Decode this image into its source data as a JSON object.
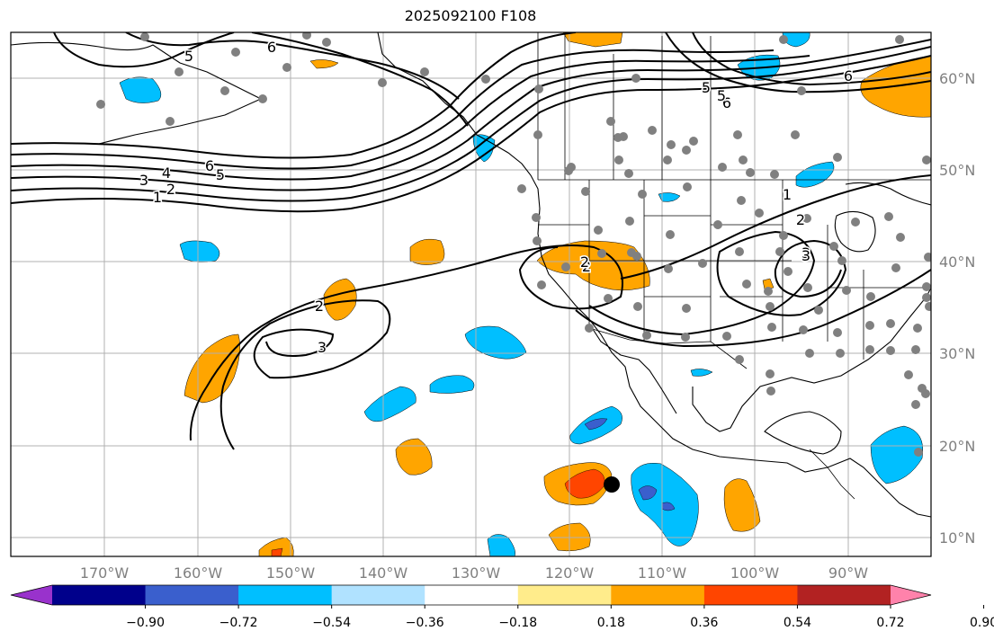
{
  "title": "2025092100 F108",
  "lon_labels": [
    "170°W",
    "160°W",
    "150°W",
    "140°W",
    "130°W",
    "120°W",
    "110°W",
    "100°W",
    "90°W"
  ],
  "lat_labels": [
    "60°N",
    "50°N",
    "40°N",
    "30°N",
    "20°N",
    "10°N"
  ],
  "colorbar": {
    "ticks": [
      "−0.90",
      "−0.72",
      "−0.54",
      "−0.36",
      "−0.18",
      "0.18",
      "0.36",
      "0.54",
      "0.72",
      "0.90"
    ],
    "colors": [
      "#9932cc",
      "#00008b",
      "#3a5fcd",
      "#00bfff",
      "#b0e2ff",
      "#ffffff",
      "#ffec8b",
      "#ffa500",
      "#ff4500",
      "#b22222",
      "#ff82ab"
    ]
  },
  "contour_labels": [
    "6",
    "5",
    "6",
    "5",
    "4",
    "3",
    "2",
    "1",
    "6",
    "5",
    "6",
    "5",
    "2",
    "3",
    "2",
    "3",
    "1",
    "2",
    "3",
    "2"
  ]
}
